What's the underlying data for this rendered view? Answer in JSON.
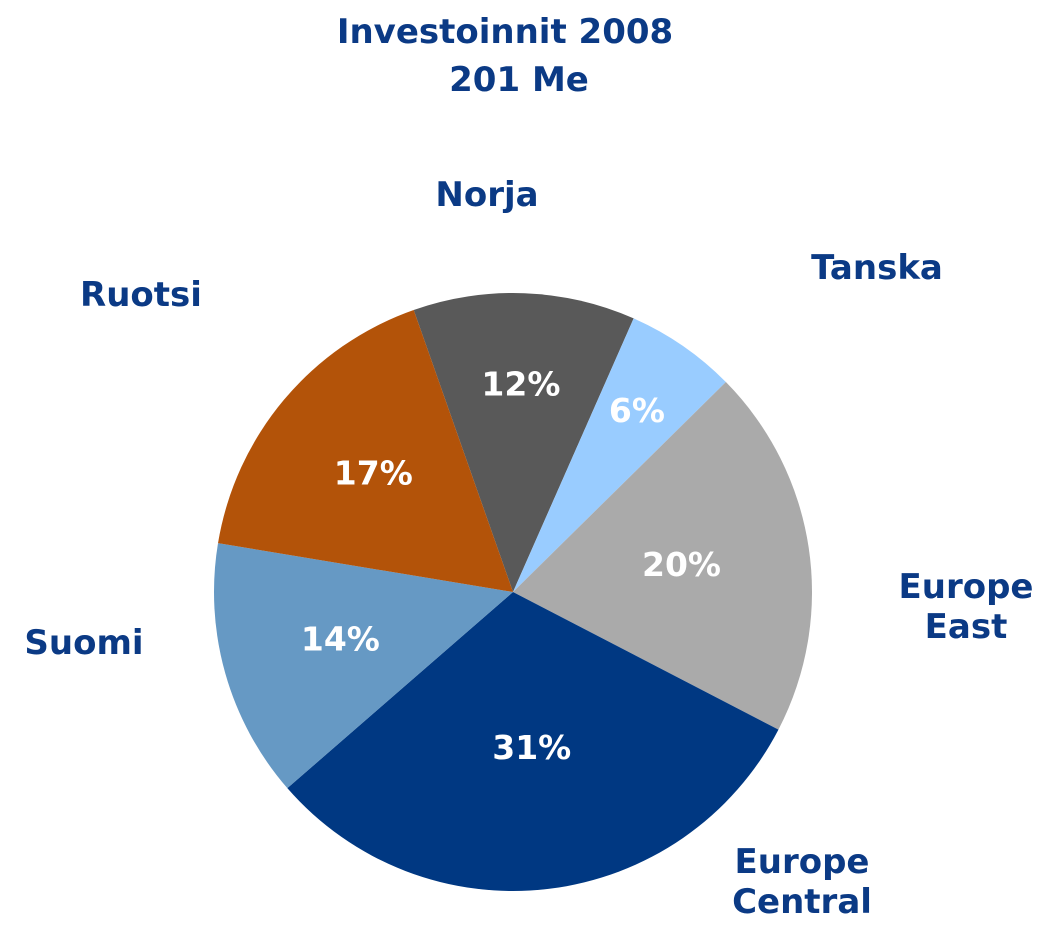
{
  "chart_data": {
    "type": "pie",
    "title": "Investoinnit 2008",
    "subtitle": "201 Me",
    "categories": [
      "Norja",
      "Tanska",
      "Europe East",
      "Europe Central",
      "Suomi",
      "Ruotsi"
    ],
    "values": [
      12,
      6,
      20,
      31,
      14,
      17
    ],
    "value_labels": [
      "12%",
      "6%",
      "20%",
      "31%",
      "14%",
      "17%"
    ],
    "colors": [
      "#595959",
      "#99ccff",
      "#aaaaaa",
      "#003882",
      "#6699c4",
      "#b35309"
    ]
  }
}
